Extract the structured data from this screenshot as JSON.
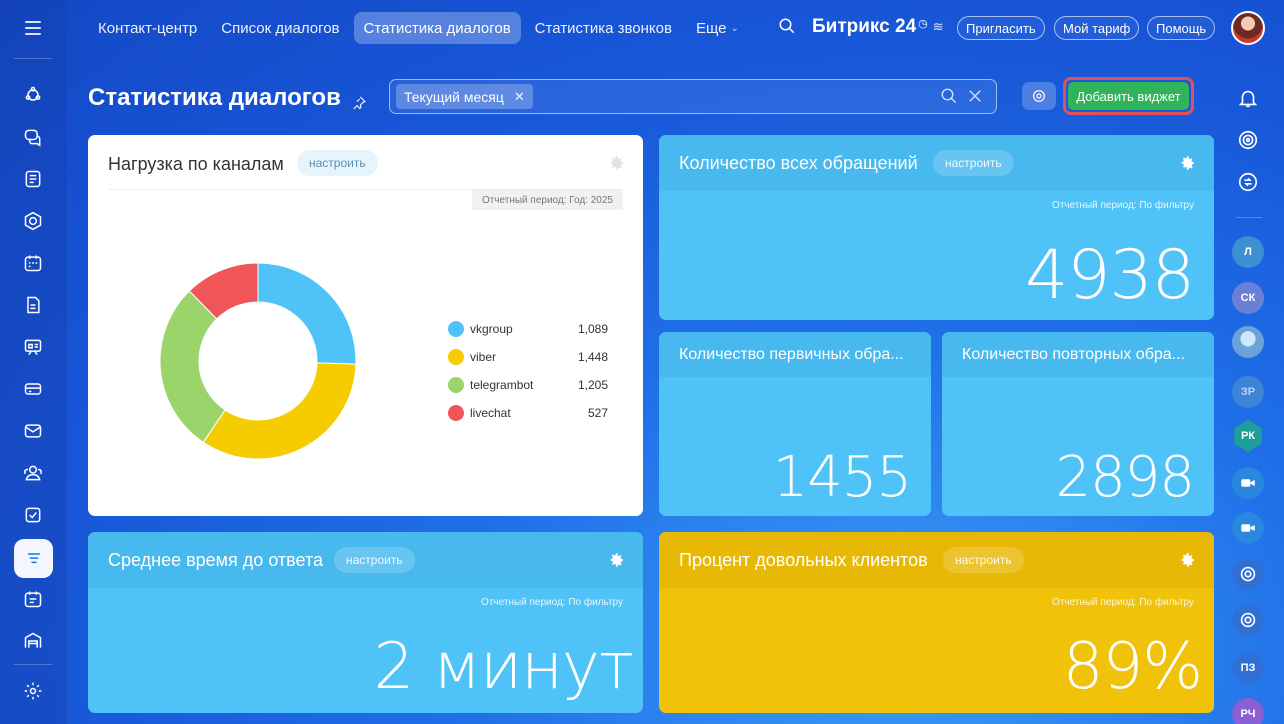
{
  "nav": {
    "items": [
      {
        "label": "Контакт-центр",
        "active": false
      },
      {
        "label": "Список диалогов",
        "active": false
      },
      {
        "label": "Статистика диалогов",
        "active": true
      },
      {
        "label": "Статистика звонков",
        "active": false
      },
      {
        "label": "Еще",
        "active": false
      }
    ]
  },
  "brand": {
    "name": "Битрикс 24"
  },
  "header_buttons": {
    "invite": "Пригласить",
    "tariff": "Мой тариф",
    "help": "Помощь"
  },
  "page": {
    "title": "Статистика диалогов"
  },
  "filter": {
    "chip": "Текущий месяц"
  },
  "actions": {
    "add_widget": "Добавить виджет"
  },
  "widgets": {
    "channels": {
      "title": "Нагрузка по каналам",
      "setup": "настроить",
      "period": "Отчетный период: Год: 2025"
    },
    "total": {
      "title": "Количество всех обращений",
      "setup": "настроить",
      "period": "Отчетный период: По фильтру",
      "value": "4938"
    },
    "primary": {
      "title": "Количество первичных обра...",
      "value": "1455"
    },
    "repeat": {
      "title": "Количество повторных обра...",
      "value": "2898"
    },
    "response": {
      "title": "Среднее время до ответа",
      "setup": "настроить",
      "period": "Отчетный период: По фильтру",
      "value": "2 минут"
    },
    "satisfied": {
      "title": "Процент довольных клиентов",
      "setup": "настроить",
      "period": "Отчетный период: По фильтру",
      "value": "89%"
    }
  },
  "right_rail": {
    "avatars": [
      "Л",
      "СК",
      "ЗР",
      "РК",
      "ПЗ",
      "РЧ"
    ]
  },
  "chart_data": {
    "type": "pie",
    "donut": true,
    "categories": [
      "vkgroup",
      "viber",
      "telegrambot",
      "livechat"
    ],
    "values": [
      1089,
      1448,
      1205,
      527
    ],
    "value_labels": [
      "1,089",
      "1,448",
      "1,205",
      "527"
    ],
    "colors": [
      "#4fc3f7",
      "#f5cc00",
      "#9bd46b",
      "#f05558"
    ],
    "legend_position": "right"
  }
}
